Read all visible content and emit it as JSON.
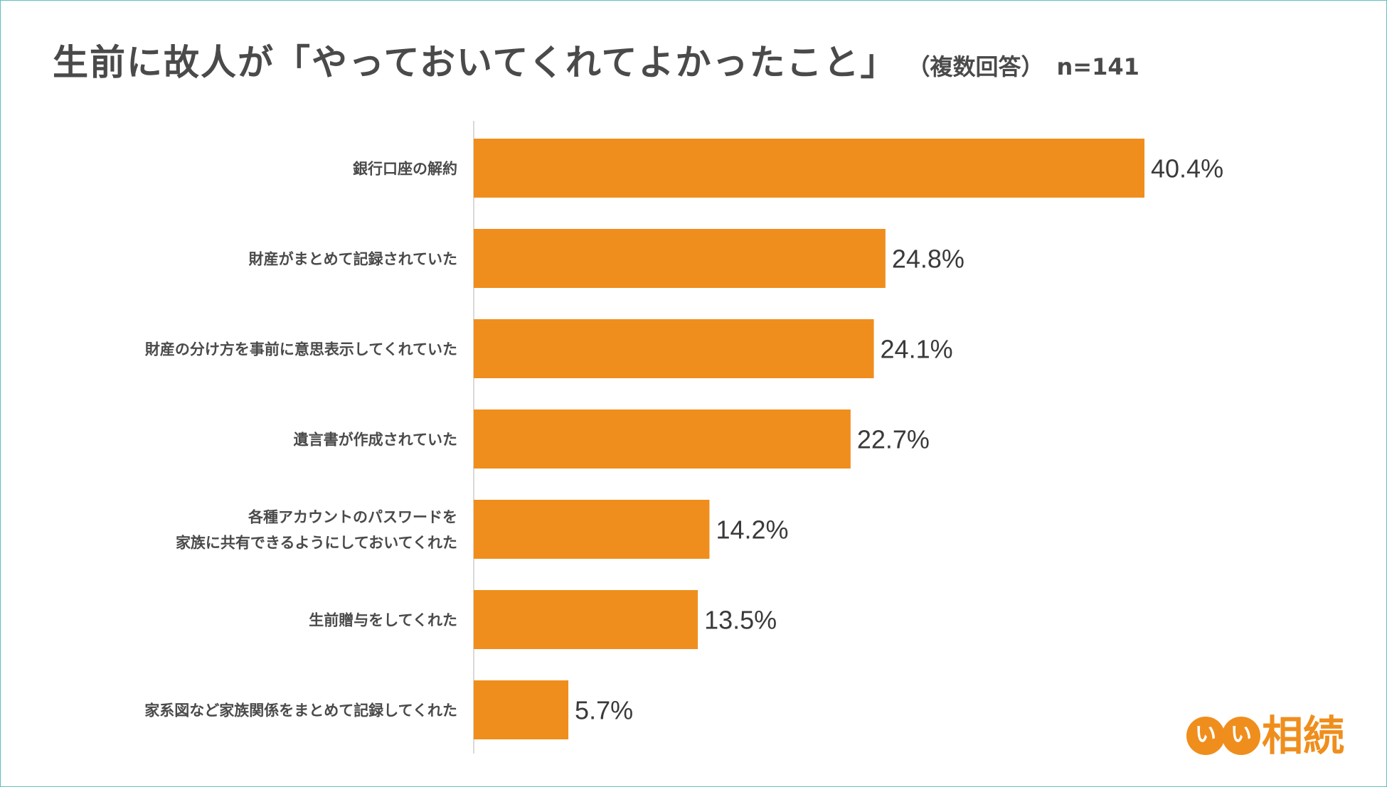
{
  "header": {
    "title": "生前に故人が「やっておいてくれてよかったこと」",
    "note": "（複数回答）",
    "sample": "n=141"
  },
  "colors": {
    "bar": "#ef8e1c",
    "axis": "#d9d9d9",
    "text": "#4a4a4a"
  },
  "chart_data": {
    "type": "bar",
    "orientation": "horizontal",
    "categories": [
      [
        "銀行口座の解約"
      ],
      [
        "財産がまとめて記録されていた"
      ],
      [
        "財産の分け方を事前に意思表示してくれていた"
      ],
      [
        "遺言書が作成されていた"
      ],
      [
        "各種アカウントのパスワードを",
        "家族に共有できるようにしておいてくれた"
      ],
      [
        "生前贈与をしてくれた"
      ],
      [
        "家系図など家族関係をまとめて記録してくれた"
      ]
    ],
    "values": [
      40.4,
      24.8,
      24.1,
      22.7,
      14.2,
      13.5,
      5.7
    ],
    "value_labels": [
      "40.4%",
      "24.8%",
      "24.1%",
      "22.7%",
      "14.2%",
      "13.5%",
      "5.7%"
    ],
    "xlim": [
      0,
      40.4
    ],
    "grid": false,
    "legend": "none"
  },
  "logo": {
    "glyphs": [
      "い",
      "い"
    ],
    "text": "相続"
  }
}
